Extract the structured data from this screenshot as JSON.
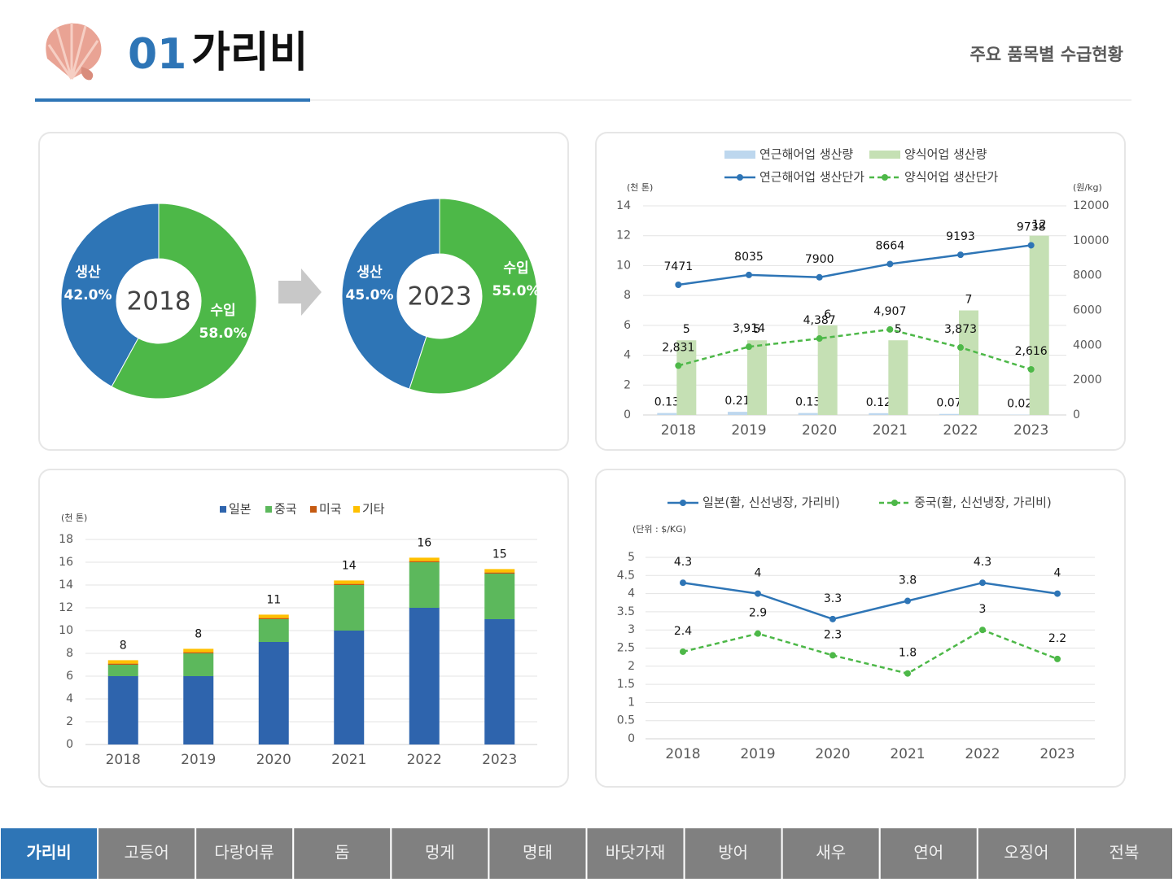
{
  "header": {
    "number": "01",
    "title": "가리비",
    "subtitle": "주요 품목별 수급현황"
  },
  "chart_data": [
    {
      "type": "donut",
      "center_label": "2018",
      "categories": [
        "생산",
        "수입"
      ],
      "values": [
        42.0,
        58.0
      ],
      "value_labels": [
        "42.0%",
        "58.0%"
      ],
      "colors": [
        "#2e75b6",
        "#4db848"
      ]
    },
    {
      "type": "donut",
      "center_label": "2023",
      "categories": [
        "생산",
        "수입"
      ],
      "values": [
        45.0,
        55.0
      ],
      "value_labels": [
        "45.0%",
        "55.0%"
      ],
      "colors": [
        "#2e75b6",
        "#4db848"
      ]
    },
    {
      "type": "combo",
      "categories": [
        "2018",
        "2019",
        "2020",
        "2021",
        "2022",
        "2023"
      ],
      "y_unit": "(천 톤)",
      "y2_unit": "(원/kg)",
      "ylim": [
        0,
        14
      ],
      "yticks": [
        0,
        2,
        4,
        6,
        8,
        10,
        12,
        14
      ],
      "y2lim": [
        0,
        12000
      ],
      "y2ticks": [
        0,
        2000,
        4000,
        6000,
        8000,
        10000,
        12000
      ],
      "grid": true,
      "series": [
        {
          "name": "연근해어업 생산량",
          "type": "bar",
          "color": "#bdd7ee",
          "values": [
            0.13,
            0.21,
            0.13,
            0.12,
            0.07,
            0.02
          ]
        },
        {
          "name": "양식어업 생산량",
          "type": "bar",
          "color": "#c5e0b4",
          "values": [
            5,
            5,
            6,
            5,
            7,
            12
          ]
        },
        {
          "name": "연근해어업 생산단가",
          "type": "line",
          "axis": "y2",
          "color": "#2e75b6",
          "values": [
            7471,
            8035,
            7900,
            8664,
            9193,
            9738
          ]
        },
        {
          "name": "양식어업 생산단가",
          "type": "line",
          "axis": "y2",
          "color": "#4db848",
          "dashed": true,
          "values": [
            2831,
            3914,
            4387,
            4907,
            3873,
            2616
          ],
          "value_labels": [
            "2,831",
            "3,914",
            "4,387",
            "4,907",
            "3,873",
            "2,616"
          ]
        }
      ]
    },
    {
      "type": "stacked_bar",
      "categories": [
        "2018",
        "2019",
        "2020",
        "2021",
        "2022",
        "2023"
      ],
      "y_unit": "(천 톤)",
      "ylim": [
        0,
        18
      ],
      "yticks": [
        0,
        2,
        4,
        6,
        8,
        10,
        12,
        14,
        16,
        18
      ],
      "grid": true,
      "series": [
        {
          "name": "일본",
          "color": "#2e64ad",
          "values": [
            6,
            6,
            9,
            10,
            12,
            11
          ]
        },
        {
          "name": "중국",
          "color": "#5cb85c",
          "values": [
            1,
            2,
            2,
            4,
            4,
            4
          ]
        },
        {
          "name": "미국",
          "color": "#c55a11",
          "values": [
            0.1,
            0.1,
            0.1,
            0.1,
            0.1,
            0.1
          ]
        },
        {
          "name": "기타",
          "color": "#ffc000",
          "values": [
            0.3,
            0.3,
            0.3,
            0.3,
            0.3,
            0.3
          ]
        }
      ],
      "totals": [
        8,
        8,
        11,
        14,
        16,
        15
      ]
    },
    {
      "type": "line",
      "categories": [
        "2018",
        "2019",
        "2020",
        "2021",
        "2022",
        "2023"
      ],
      "y_unit": "(단위 : $/KG)",
      "ylim": [
        0,
        5
      ],
      "yticks": [
        0,
        0.5,
        1,
        1.5,
        2,
        2.5,
        3,
        3.5,
        4,
        4.5,
        5
      ],
      "grid": true,
      "series": [
        {
          "name": "일본(활, 신선냉장, 가리비)",
          "color": "#2e75b6",
          "values": [
            4.3,
            4,
            3.3,
            3.8,
            4.3,
            4
          ]
        },
        {
          "name": "중국(활, 신선냉장, 가리비)",
          "color": "#4db848",
          "dashed": true,
          "values": [
            2.4,
            2.9,
            2.3,
            1.8,
            3,
            2.2
          ]
        }
      ]
    }
  ],
  "tabs": {
    "items": [
      "가리비",
      "고등어",
      "다랑어류",
      "돔",
      "멍게",
      "명태",
      "바닷가재",
      "방어",
      "새우",
      "연어",
      "오징어",
      "전복"
    ],
    "active": 0
  }
}
